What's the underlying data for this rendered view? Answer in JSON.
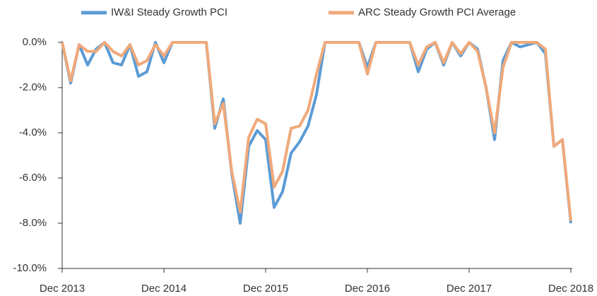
{
  "chart_data": {
    "type": "line",
    "categories": [
      "Dec 2013",
      null,
      null,
      null,
      null,
      null,
      null,
      null,
      null,
      null,
      null,
      null,
      "Dec 2014",
      null,
      null,
      null,
      null,
      null,
      null,
      null,
      null,
      null,
      null,
      null,
      "Dec 2015",
      null,
      null,
      null,
      null,
      null,
      null,
      null,
      null,
      null,
      null,
      null,
      "Dec 2016",
      null,
      null,
      null,
      null,
      null,
      null,
      null,
      null,
      null,
      null,
      null,
      "Dec 2017",
      null,
      null,
      null,
      null,
      null,
      null,
      null,
      null,
      null,
      null,
      null,
      "Dec 2018"
    ],
    "series": [
      {
        "name": "IW&I Steady Growth PCI",
        "color": "#5b9bd5",
        "values": [
          0,
          -1.8,
          -0.1,
          -1.0,
          -0.3,
          0,
          -0.9,
          -1.0,
          -0.1,
          -1.5,
          -1.3,
          0,
          -0.9,
          0,
          0,
          0,
          0,
          0,
          -3.8,
          -2.5,
          -5.8,
          -8.0,
          -4.6,
          -3.9,
          -4.3,
          -7.3,
          -6.6,
          -4.9,
          -4.4,
          -3.7,
          -2.3,
          0,
          0,
          0,
          0,
          0,
          -1.1,
          0,
          0,
          0,
          0,
          0,
          -1.3,
          -0.3,
          0,
          -1.0,
          0,
          -0.6,
          0,
          -0.3,
          -2.0,
          -4.3,
          -0.8,
          0,
          -0.2,
          -0.1,
          0,
          -0.5,
          -4.6,
          -4.3,
          -8.0
        ]
      },
      {
        "name": "ARC Steady Growth PCI Average",
        "color": "#f0a97a",
        "values": [
          0,
          -1.7,
          -0.1,
          -0.4,
          -0.4,
          0,
          -0.4,
          -0.6,
          -0.1,
          -1.0,
          -0.8,
          -0.1,
          -0.6,
          0,
          0,
          0,
          0,
          0,
          -3.6,
          -2.7,
          -5.7,
          -7.5,
          -4.2,
          -3.4,
          -3.6,
          -6.4,
          -5.7,
          -3.8,
          -3.7,
          -3.0,
          -1.4,
          0,
          0,
          0,
          0,
          0,
          -1.4,
          0,
          0,
          0,
          0,
          0,
          -1.0,
          -0.2,
          0,
          -0.9,
          0,
          -0.5,
          0,
          -0.4,
          -2.0,
          -4.0,
          -1.1,
          0,
          0,
          0,
          0,
          -0.3,
          -4.6,
          -4.3,
          -7.9
        ]
      }
    ],
    "ylim": [
      -10,
      0
    ],
    "yticks": [
      {
        "value": -10,
        "label": "-10.0%"
      },
      {
        "value": -8,
        "label": "-8.0%"
      },
      {
        "value": -6,
        "label": "-6.0%"
      },
      {
        "value": -4,
        "label": "-4.0%"
      },
      {
        "value": -2,
        "label": "-2.0%"
      },
      {
        "value": 0,
        "label": "0.0%"
      }
    ],
    "grid": false
  }
}
